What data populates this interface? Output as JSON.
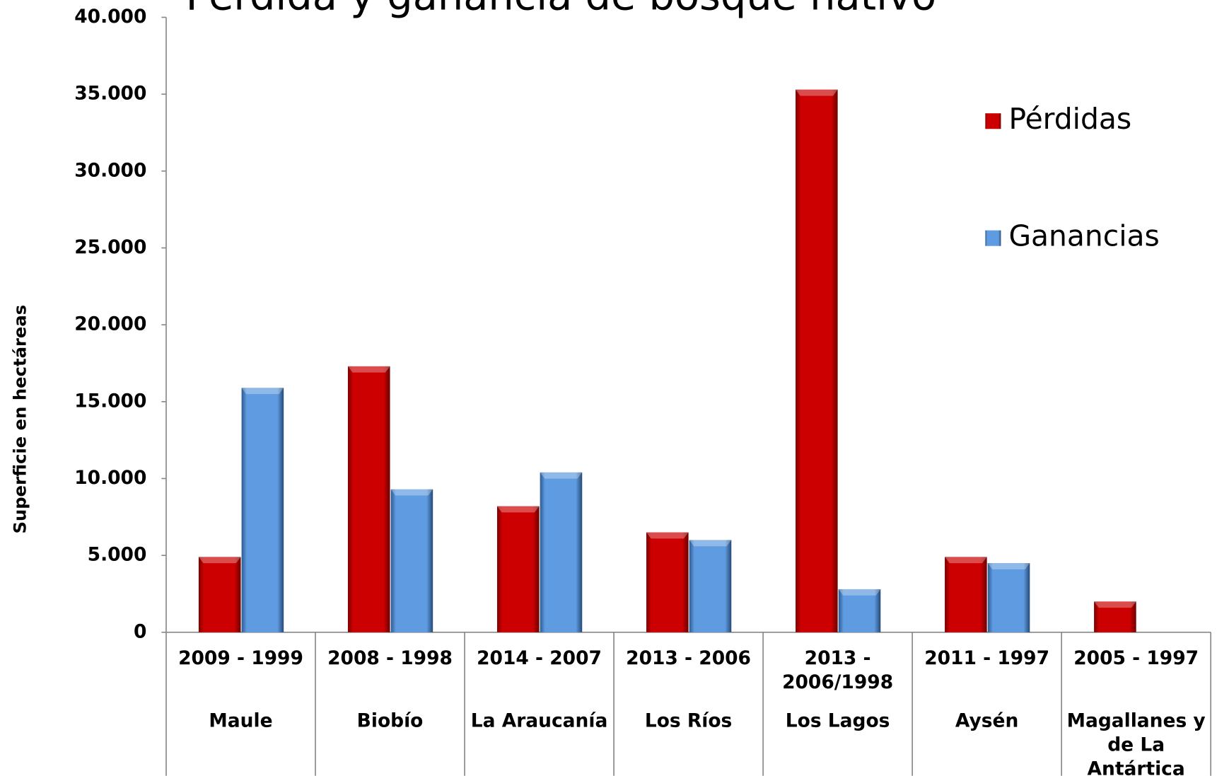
{
  "chart_data": {
    "type": "bar",
    "title": "Pérdida y ganancia de bosque nativo",
    "y_label": "Superficie en hectáreas",
    "categories": [
      "Maule",
      "Biobío",
      "La Araucanía",
      "Los Ríos",
      "Los Lagos",
      "Aysén",
      "Magallanes y de La Antártica"
    ],
    "periods": [
      "2009 - 1999",
      "2008 - 1998",
      "2014 - 2007",
      "2013 - 2006",
      "2013 - 2006/1998",
      "2011 - 1997",
      "2005 - 1997"
    ],
    "series": [
      {
        "name": "Pérdidas",
        "color": "#cc0000",
        "values": [
          4900,
          17300,
          8200,
          6500,
          35300,
          4900,
          2000
        ]
      },
      {
        "name": "Ganancias",
        "color": "#5f9be0",
        "values": [
          15900,
          9300,
          10400,
          6000,
          2800,
          4500,
          null
        ]
      }
    ],
    "ylim": [
      0,
      40000
    ],
    "yticks": [
      0,
      {
        "value": 5000,
        "label": "5.000"
      },
      {
        "value": 10000,
        "label": "10.000"
      },
      {
        "value": 15000,
        "label": "15.000"
      },
      {
        "value": 20000,
        "label": "20.000"
      },
      {
        "value": 25000,
        "label": "25.000"
      },
      {
        "value": 30000,
        "label": "30.000"
      },
      {
        "value": 35000,
        "label": "35.000"
      },
      {
        "value": 40000,
        "label": "40.000"
      }
    ],
    "legend": "top-right"
  }
}
